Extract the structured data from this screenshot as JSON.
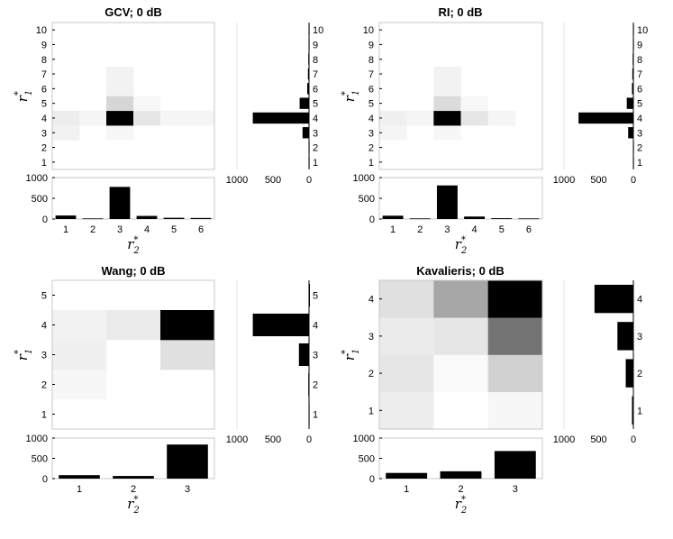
{
  "chart_data": [
    {
      "type": "heatmap",
      "title": "GCV; 0 dB",
      "xlabel": "r",
      "xlabel_sup": "*",
      "xlabel_sub": "2",
      "ylabel": "r",
      "ylabel_sup": "*",
      "ylabel_sub": "1",
      "x_categories": [
        "1",
        "2",
        "3",
        "4",
        "5",
        "6"
      ],
      "y_categories": [
        "1",
        "2",
        "3",
        "4",
        "5",
        "6",
        "7",
        "8",
        "9",
        "10"
      ],
      "heatmap_levels": [
        [
          0,
          0,
          0,
          0,
          0,
          0
        ],
        [
          0,
          0,
          0,
          0,
          0,
          0
        ],
        [
          0.05,
          0,
          0.03,
          0,
          0,
          0
        ],
        [
          0.07,
          0.04,
          1.0,
          0.1,
          0.04,
          0.04
        ],
        [
          0,
          0,
          0.16,
          0.03,
          0,
          0
        ],
        [
          0,
          0,
          0.05,
          0,
          0,
          0
        ],
        [
          0,
          0,
          0.05,
          0,
          0,
          0
        ],
        [
          0,
          0,
          0,
          0,
          0,
          0
        ],
        [
          0,
          0,
          0,
          0,
          0,
          0
        ],
        [
          0,
          0,
          0,
          0,
          0,
          0
        ]
      ],
      "bottom_bar": {
        "values": [
          85,
          15,
          775,
          75,
          30,
          25
        ],
        "ylim": [
          0,
          1000
        ],
        "ticks": [
          "0",
          "500",
          "1000"
        ]
      },
      "side_bar": {
        "values": [
          5,
          5,
          90,
          780,
          130,
          25,
          15,
          10,
          5,
          5
        ],
        "xlim_reversed": [
          0,
          1000
        ],
        "ticks": [
          "1000",
          "0"
        ],
        "tick_values": [
          1000,
          0
        ],
        "extra_tick": "500",
        "extra_tick_value": 500
      }
    },
    {
      "type": "heatmap",
      "title": "RI; 0 dB",
      "xlabel": "r",
      "xlabel_sup": "*",
      "xlabel_sub": "2",
      "ylabel": "r",
      "ylabel_sup": "*",
      "ylabel_sub": "1",
      "x_categories": [
        "1",
        "2",
        "3",
        "4",
        "5",
        "6"
      ],
      "y_categories": [
        "1",
        "2",
        "3",
        "4",
        "5",
        "6",
        "7",
        "8",
        "9",
        "10"
      ],
      "heatmap_levels": [
        [
          0,
          0,
          0,
          0,
          0,
          0
        ],
        [
          0,
          0,
          0,
          0,
          0,
          0
        ],
        [
          0.04,
          0,
          0.03,
          0,
          0,
          0
        ],
        [
          0.06,
          0.04,
          1.0,
          0.1,
          0.04,
          0
        ],
        [
          0,
          0,
          0.14,
          0.03,
          0,
          0
        ],
        [
          0,
          0,
          0.05,
          0,
          0,
          0
        ],
        [
          0,
          0,
          0.05,
          0,
          0,
          0
        ],
        [
          0,
          0,
          0,
          0,
          0,
          0
        ],
        [
          0,
          0,
          0,
          0,
          0,
          0
        ],
        [
          0,
          0,
          0,
          0,
          0,
          0
        ]
      ],
      "bottom_bar": {
        "values": [
          80,
          15,
          810,
          60,
          20,
          15
        ],
        "ylim": [
          0,
          1000
        ],
        "ticks": [
          "0",
          "500",
          "1000"
        ]
      },
      "side_bar": {
        "values": [
          5,
          5,
          75,
          790,
          95,
          20,
          15,
          10,
          5,
          5
        ],
        "xlim_reversed": [
          0,
          1000
        ],
        "ticks": [
          "1000",
          "0"
        ],
        "tick_values": [
          1000,
          0
        ],
        "extra_tick": "500",
        "extra_tick_value": 500
      }
    },
    {
      "type": "heatmap",
      "title": "Wang; 0 dB",
      "xlabel": "r",
      "xlabel_sup": "*",
      "xlabel_sub": "2",
      "ylabel": "r",
      "ylabel_sup": "*",
      "ylabel_sub": "1",
      "x_categories": [
        "1",
        "2",
        "3"
      ],
      "y_categories": [
        "1",
        "2",
        "3",
        "4",
        "5"
      ],
      "heatmap_levels": [
        [
          0,
          0,
          0
        ],
        [
          0.03,
          0,
          0
        ],
        [
          0.06,
          0,
          0.12
        ],
        [
          0.05,
          0.08,
          1.0
        ],
        [
          0,
          0,
          0
        ]
      ],
      "bottom_bar": {
        "values": [
          85,
          65,
          840
        ],
        "ylim": [
          0,
          1000
        ],
        "ticks": [
          "0",
          "500",
          "1000"
        ]
      },
      "side_bar": {
        "values": [
          5,
          10,
          140,
          780,
          0
        ],
        "xlim_reversed": [
          0,
          1000
        ],
        "ticks": [
          "1000",
          "0"
        ],
        "tick_values": [
          1000,
          0
        ],
        "extra_tick": "500",
        "extra_tick_value": 500
      }
    },
    {
      "type": "heatmap",
      "title": "Kavalieris; 0 dB",
      "xlabel": "r",
      "xlabel_sup": "*",
      "xlabel_sub": "2",
      "ylabel": "r",
      "ylabel_sup": "*",
      "ylabel_sub": "1",
      "x_categories": [
        "1",
        "2",
        "3"
      ],
      "y_categories": [
        "1",
        "2",
        "3",
        "4"
      ],
      "heatmap_levels": [
        [
          0.07,
          0.0,
          0.03
        ],
        [
          0.1,
          0.02,
          0.18
        ],
        [
          0.08,
          0.1,
          0.55
        ],
        [
          0.12,
          0.35,
          1.0
        ]
      ],
      "bottom_bar": {
        "values": [
          140,
          180,
          680
        ],
        "ylim": [
          0,
          1000
        ],
        "ticks": [
          "0",
          "500",
          "1000"
        ]
      },
      "side_bar": {
        "values": [
          20,
          110,
          230,
          560
        ],
        "xlim_reversed": [
          0,
          1000
        ],
        "ticks": [
          "1000",
          "500",
          "0"
        ],
        "tick_values": [
          1000,
          500,
          0
        ],
        "extra_tick": "",
        "extra_tick_value": null
      }
    }
  ]
}
